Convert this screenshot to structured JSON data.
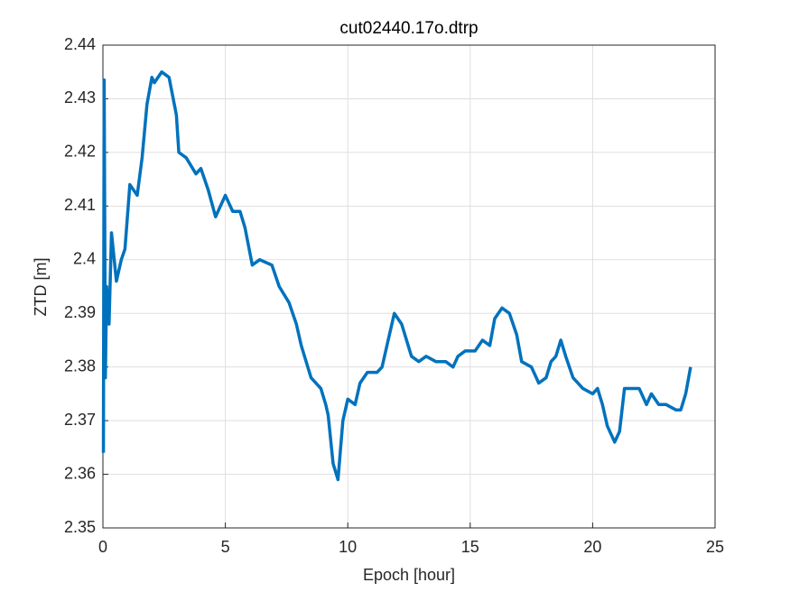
{
  "chart_data": {
    "type": "line",
    "title": "cut02440.17o.dtrp",
    "x_label": "Epoch [hour]",
    "y_label": "ZTD [m]",
    "xlim": [
      0,
      25
    ],
    "xticks": [
      0,
      5,
      10,
      15,
      20,
      25
    ],
    "ylim": [
      2.35,
      2.44
    ],
    "yticks": [
      2.35,
      2.36,
      2.37,
      2.38,
      2.39,
      2.4,
      2.41,
      2.42,
      2.43,
      2.44
    ],
    "grid": true,
    "series": [
      {
        "color": "#0072bd",
        "x": [
          0.02,
          0.05,
          0.1,
          0.15,
          0.25,
          0.35,
          0.55,
          0.75,
          0.9,
          1.1,
          1.4,
          1.6,
          1.8,
          2.0,
          2.1,
          2.4,
          2.7,
          3.0,
          3.1,
          3.4,
          3.8,
          4.0,
          4.3,
          4.6,
          4.9,
          5.0,
          5.3,
          5.6,
          5.8,
          6.1,
          6.4,
          6.9,
          7.2,
          7.6,
          7.9,
          8.1,
          8.5,
          8.9,
          9.1,
          9.2,
          9.4,
          9.6,
          9.8,
          10.0,
          10.3,
          10.5,
          10.8,
          11.2,
          11.4,
          11.7,
          11.9,
          12.2,
          12.4,
          12.6,
          12.9,
          13.2,
          13.6,
          14.0,
          14.3,
          14.5,
          14.8,
          15.2,
          15.5,
          15.8,
          16.0,
          16.3,
          16.6,
          16.9,
          17.1,
          17.5,
          17.8,
          18.1,
          18.3,
          18.5,
          18.7,
          18.9,
          19.2,
          19.6,
          20.0,
          20.2,
          20.4,
          20.6,
          20.9,
          21.1,
          21.3,
          21.6,
          21.9,
          22.2,
          22.4,
          22.7,
          23.0,
          23.4,
          23.6,
          23.8,
          24.0
        ],
        "values": [
          2.364,
          2.4335,
          2.378,
          2.395,
          2.388,
          2.405,
          2.396,
          2.4,
          2.402,
          2.414,
          2.412,
          2.419,
          2.429,
          2.434,
          2.433,
          2.435,
          2.434,
          2.427,
          2.42,
          2.419,
          2.416,
          2.417,
          2.413,
          2.408,
          2.411,
          2.412,
          2.409,
          2.409,
          2.406,
          2.399,
          2.4,
          2.399,
          2.395,
          2.392,
          2.388,
          2.384,
          2.378,
          2.376,
          2.373,
          2.371,
          2.362,
          2.359,
          2.37,
          2.374,
          2.373,
          2.377,
          2.379,
          2.379,
          2.38,
          2.386,
          2.39,
          2.388,
          2.385,
          2.382,
          2.381,
          2.382,
          2.381,
          2.381,
          2.38,
          2.382,
          2.383,
          2.383,
          2.385,
          2.384,
          2.389,
          2.391,
          2.39,
          2.386,
          2.381,
          2.38,
          2.377,
          2.378,
          2.381,
          2.382,
          2.385,
          2.382,
          2.378,
          2.376,
          2.375,
          2.376,
          2.373,
          2.369,
          2.366,
          2.368,
          2.376,
          2.376,
          2.376,
          2.373,
          2.375,
          2.373,
          2.373,
          2.372,
          2.372,
          2.375,
          2.38
        ]
      }
    ]
  }
}
